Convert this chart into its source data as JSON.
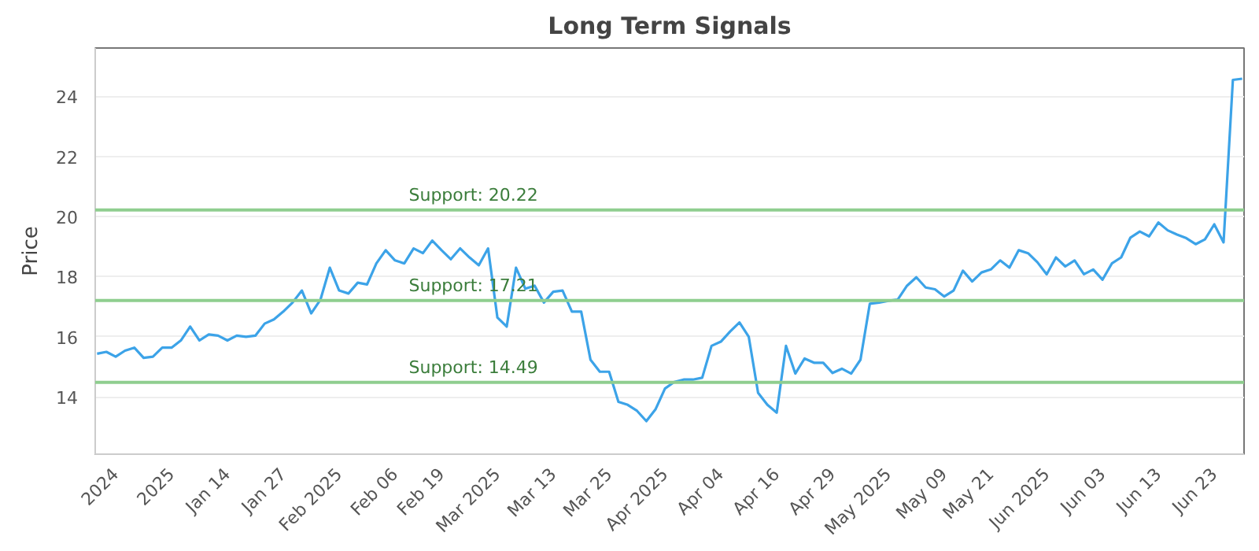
{
  "chart_data": {
    "type": "line",
    "title": "Long Term Signals",
    "ylabel": "Price",
    "categories": [
      null,
      null,
      "2024",
      null,
      null,
      null,
      null,
      null,
      "2025",
      null,
      null,
      null,
      null,
      null,
      "Jan 14",
      null,
      null,
      null,
      null,
      null,
      "Jan 27",
      null,
      null,
      null,
      null,
      null,
      "Feb 2025",
      null,
      null,
      null,
      null,
      null,
      "Feb 06",
      null,
      null,
      null,
      null,
      "Feb 19",
      null,
      null,
      null,
      null,
      null,
      "Mar 2025",
      null,
      null,
      null,
      null,
      null,
      "Mar 13",
      null,
      null,
      null,
      null,
      null,
      "Mar 25",
      null,
      null,
      null,
      null,
      null,
      "Apr 2025",
      null,
      null,
      null,
      null,
      null,
      "Apr 04",
      null,
      null,
      null,
      null,
      null,
      "Apr 16",
      null,
      null,
      null,
      null,
      null,
      "Apr 29",
      null,
      null,
      null,
      null,
      null,
      "May 2025",
      null,
      null,
      null,
      null,
      null,
      "May 09",
      null,
      null,
      null,
      null,
      "May 21",
      null,
      null,
      null,
      null,
      null,
      "Jun 2025",
      null,
      null,
      null,
      null,
      null,
      "Jun 03",
      null,
      null,
      null,
      null,
      null,
      "Jun 13",
      null,
      null,
      null,
      null,
      null,
      "Jun 23",
      null,
      null,
      null
    ],
    "series": [
      {
        "color": "#3ca3e8",
        "values": [
          15.44,
          15.5,
          15.34,
          15.54,
          15.64,
          15.3,
          15.34,
          15.64,
          15.64,
          15.88,
          16.34,
          15.88,
          16.08,
          16.04,
          15.88,
          16.04,
          16.0,
          16.04,
          16.44,
          16.58,
          16.84,
          17.14,
          17.54,
          16.78,
          17.24,
          18.3,
          17.54,
          17.44,
          17.8,
          17.74,
          18.44,
          18.88,
          18.54,
          18.44,
          18.94,
          18.78,
          19.2,
          18.88,
          18.58,
          18.94,
          18.64,
          18.38,
          18.94,
          16.64,
          16.34,
          18.3,
          17.6,
          17.7,
          17.14,
          17.5,
          17.54,
          16.84,
          16.84,
          15.24,
          14.84,
          14.84,
          13.84,
          13.74,
          13.54,
          13.2,
          13.6,
          14.28,
          14.5,
          14.58,
          14.58,
          14.64,
          15.7,
          15.84,
          16.18,
          16.48,
          16.0,
          14.14,
          13.74,
          13.48,
          15.7,
          14.78,
          15.28,
          15.14,
          15.14,
          14.8,
          14.94,
          14.78,
          15.24,
          17.1,
          17.14,
          17.2,
          17.24,
          17.7,
          17.98,
          17.64,
          17.58,
          17.34,
          17.54,
          18.2,
          17.84,
          18.14,
          18.24,
          18.54,
          18.3,
          18.88,
          18.78,
          18.48,
          18.08,
          18.64,
          18.34,
          18.54,
          18.08,
          18.24,
          17.9,
          18.44,
          18.64,
          19.3,
          19.5,
          19.34,
          19.8,
          19.54,
          19.4,
          19.28,
          19.08,
          19.24,
          19.74,
          19.14,
          24.54,
          24.58
        ]
      }
    ],
    "ylim": [
      12.1,
      25.6
    ],
    "yticks": [
      14,
      16,
      18,
      20,
      22,
      24
    ],
    "grid": "y",
    "ref_lines": [
      {
        "axis": "y",
        "value": 20.22,
        "label": "Support: 20.22",
        "color": "#8fce8f"
      },
      {
        "axis": "y",
        "value": 17.21,
        "label": "Support: 17.21",
        "color": "#8fce8f"
      },
      {
        "axis": "y",
        "value": 14.49,
        "label": "Support: 14.49",
        "color": "#8fce8f"
      }
    ]
  }
}
